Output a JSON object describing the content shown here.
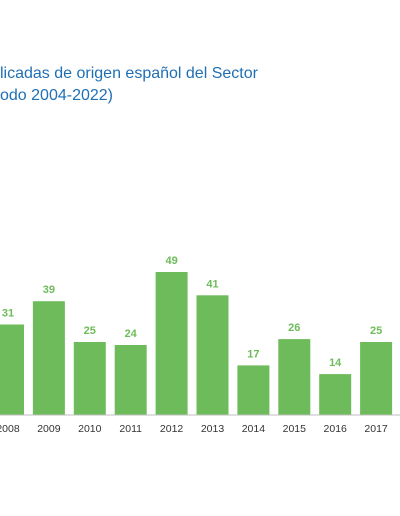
{
  "chart_data": {
    "type": "bar",
    "title_lines": [
      "licadas de origen español del Sector",
      "odo 2004-2022)"
    ],
    "categories": [
      "2008",
      "2009",
      "2010",
      "2011",
      "2012",
      "2013",
      "2014",
      "2015",
      "2016",
      "2017"
    ],
    "values": [
      31,
      39,
      25,
      24,
      49,
      41,
      17,
      26,
      14,
      25
    ],
    "ylim": [
      0,
      49
    ],
    "grid": false,
    "colors": {
      "bar": "#6dbb5a",
      "value_label": "#6dbb5a",
      "title": "#1f6fb5"
    }
  }
}
